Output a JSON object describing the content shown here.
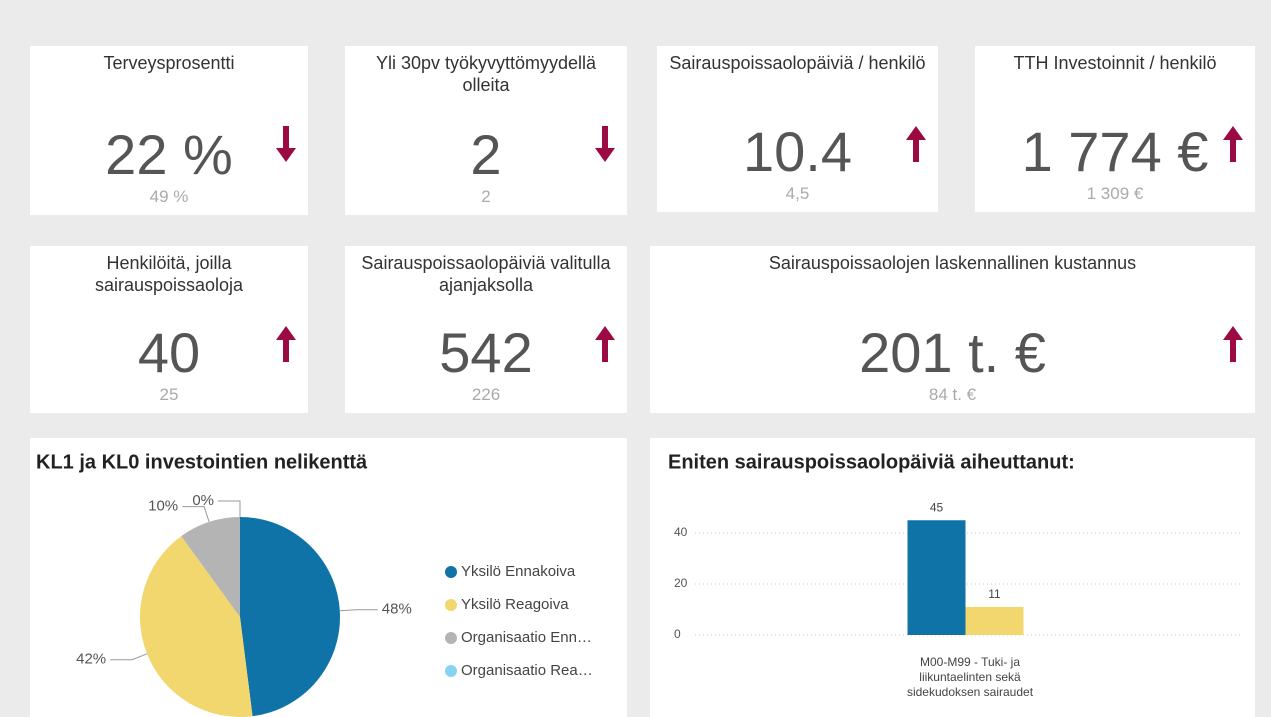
{
  "cards": [
    {
      "title": "Terveysprosentti",
      "value": "22 %",
      "previous": "49 %",
      "trend": "down"
    },
    {
      "title": "Yli 30pv työkyvyttömyydellä olleita",
      "value": "2",
      "previous": "2",
      "trend": "down"
    },
    {
      "title": "Sairauspoissaolopäiviä / henkilö",
      "value": "10.4",
      "previous": "4,5",
      "trend": "up"
    },
    {
      "title": "TTH Investoinnit / henkilö",
      "value": "1 774 €",
      "previous": "1 309 €",
      "trend": "up"
    },
    {
      "title": "Henkilöitä, joilla sairauspoissaoloja",
      "value": "40",
      "previous": "25",
      "trend": "up"
    },
    {
      "title": "Sairauspoissaolopäiviä valitulla ajanjaksolla",
      "value": "542",
      "previous": "226",
      "trend": "up"
    },
    {
      "title": "Sairauspoissaolojen laskennallinen kustannus",
      "value": "201 t. €",
      "previous": "84 t. €",
      "trend": "up"
    }
  ],
  "chart_data": [
    {
      "type": "pie",
      "title": "KL1 ja KL0 investointien nelikenttä",
      "categories": [
        "Yksilö Ennakoiva",
        "Yksilö Reagoiva",
        "Organisaatio Enn…",
        "Organisaatio Rea…"
      ],
      "values": [
        48,
        42,
        10,
        0
      ],
      "value_labels": [
        "48%",
        "42%",
        "10%",
        "0%"
      ],
      "colors": [
        "#0f73a8",
        "#f2d66e",
        "#b4b4b4",
        "#86d4f2"
      ],
      "legend": "right"
    },
    {
      "type": "bar",
      "title": "Eniten sairauspoissaolopäiviä aiheuttanut:",
      "categories": [
        "M00-M99 - Tuki- ja liikuntaelinten sekä sidekudoksen sairaudet"
      ],
      "series": [
        {
          "color": "#0f73a8",
          "values": [
            45
          ]
        },
        {
          "color": "#f2d66e",
          "values": [
            11
          ]
        }
      ],
      "ylim": [
        0,
        50
      ],
      "yticks": [
        0,
        20,
        40
      ],
      "grid": true
    }
  ]
}
